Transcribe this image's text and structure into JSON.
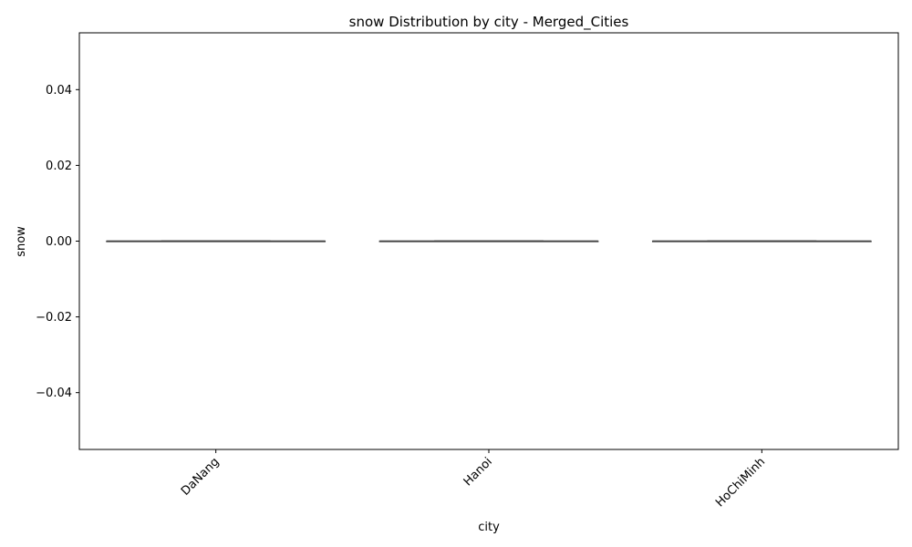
{
  "chart_data": {
    "type": "box",
    "title": "snow Distribution by city - Merged_Cities",
    "xlabel": "city",
    "ylabel": "snow",
    "categories": [
      "DaNang",
      "Hanoi",
      "HoChiMinh"
    ],
    "boxes": [
      {
        "category": "DaNang",
        "min": 0,
        "q1": 0,
        "median": 0,
        "q3": 0,
        "max": 0
      },
      {
        "category": "Hanoi",
        "min": 0,
        "q1": 0,
        "median": 0,
        "q3": 0,
        "max": 0
      },
      {
        "category": "HoChiMinh",
        "min": 0,
        "q1": 0,
        "median": 0,
        "q3": 0,
        "max": 0
      }
    ],
    "ylim": [
      -0.055,
      0.055
    ],
    "yticks": [
      0.04,
      0.02,
      0.0,
      -0.02,
      -0.04
    ],
    "ytick_labels": [
      "0.04",
      "0.02",
      "0.00",
      "−0.02",
      "−0.04"
    ],
    "grid": false,
    "legend": "none",
    "colors": {
      "box_line": "#444444",
      "axes": "#000000",
      "background": "#ffffff"
    }
  }
}
